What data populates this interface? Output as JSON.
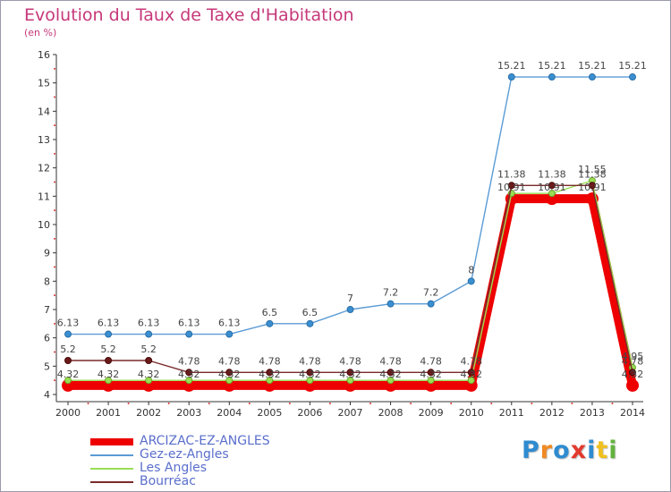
{
  "header": {
    "title": "Evolution du Taux de Taxe d'Habitation",
    "unit": "(en %)"
  },
  "logo": {
    "text": "Proxiti",
    "colors": [
      "#2e8bd0",
      "#f08a24",
      "#2e8bd0",
      "#e23a2e",
      "#2e8bd0",
      "#f0c020",
      "#62b33d"
    ]
  },
  "chart_data": {
    "type": "line",
    "x": [
      "2000",
      "2001",
      "2002",
      "2003",
      "2004",
      "2005",
      "2006",
      "2007",
      "2008",
      "2009",
      "2010",
      "2011",
      "2012",
      "2013",
      "2014"
    ],
    "ylim": [
      4,
      16
    ],
    "yticks": [
      "4",
      "5",
      "6",
      "7",
      "8",
      "9",
      "10",
      "11",
      "12",
      "13",
      "14",
      "15",
      "16"
    ],
    "grid": false,
    "legend_position": "bottom-left",
    "series": [
      {
        "name": "ARCIZAC-EZ-ANGLES",
        "color": "#ee0000",
        "values": [
          4.32,
          4.32,
          4.32,
          4.32,
          4.32,
          4.32,
          4.32,
          4.32,
          4.32,
          4.32,
          4.32,
          10.91,
          10.91,
          10.91,
          4.32
        ],
        "labels": [
          "4.32",
          "4.32",
          "4.32",
          "4.32",
          "4.32",
          "4.32",
          "4.32",
          "4.32",
          "4.32",
          "4.32",
          "4.32",
          "10.91",
          "10.91",
          "10.91",
          "4.32"
        ]
      },
      {
        "name": "Gez-ez-Angles",
        "color": "#5b9bd5",
        "values": [
          6.13,
          6.13,
          6.13,
          6.13,
          6.13,
          6.5,
          6.5,
          7,
          7.2,
          7.2,
          8,
          15.21,
          15.21,
          15.21,
          15.21
        ],
        "labels": [
          "6.13",
          "6.13",
          "6.13",
          "6.13",
          "6.13",
          "6.5",
          "6.5",
          "7",
          "7.2",
          "7.2",
          "8",
          "15.21",
          "15.21",
          "15.21",
          "15.21"
        ]
      },
      {
        "name": "Les Angles",
        "color": "#99dd55",
        "values": [
          4.5,
          4.5,
          4.5,
          4.5,
          4.5,
          4.5,
          4.5,
          4.5,
          4.5,
          4.5,
          4.5,
          11.1,
          11.1,
          11.55,
          4.95
        ],
        "labels": [
          "",
          "",
          "",
          "",
          "",
          "",
          "",
          "",
          "",
          "",
          "",
          "",
          "",
          "11.55",
          "4.95"
        ]
      },
      {
        "name": "Bourréac",
        "color": "#7a2a2a",
        "values": [
          5.2,
          5.2,
          5.2,
          4.78,
          4.78,
          4.78,
          4.78,
          4.78,
          4.78,
          4.78,
          4.78,
          11.38,
          11.38,
          11.38,
          4.78
        ],
        "labels": [
          "5.2",
          "5.2",
          "5.2",
          "4.78",
          "4.78",
          "4.78",
          "4.78",
          "4.78",
          "4.78",
          "4.78",
          "4.78",
          "11.38",
          "11.38",
          "11.38",
          "4.78"
        ]
      }
    ]
  }
}
